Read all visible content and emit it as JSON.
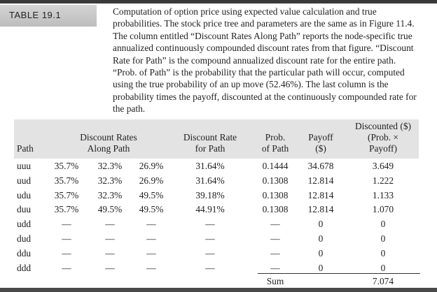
{
  "label": "TABLE 19.1",
  "caption": "Computation of option price using expected value calculation and true probabilities. The stock price tree and parameters are the same as in Figure 11.4. The column entitled “Discount Rates Along Path” reports the node-specific true annualized continuously compounded discount rates from that figure. “Discount Rate for Path” is the compound annualized discount rate for the entire path. “Prob. of Path” is the probability that the particular path will occur, computed using the true probability of an up move (52.46%). The last column is the probability times the payoff, discounted at the continuously compounded rate for the path.",
  "headers": {
    "path": "Path",
    "rates_along_1": "Discount Rates",
    "rates_along_2": "Along Path",
    "rate_for_1": "Discount Rate",
    "rate_for_2": "for Path",
    "prob_1": "Prob.",
    "prob_2": "of Path",
    "payoff_1": "Payoff",
    "payoff_2": "($)",
    "disc_1": "Discounted ($)",
    "disc_2": "(Prob. ×",
    "disc_3": "Payoff)"
  },
  "rows": [
    {
      "path": "uuu",
      "r1": "35.7%",
      "r2": "32.3%",
      "r3": "26.9%",
      "rate": "31.64%",
      "prob": "0.1444",
      "payoff": "34.678",
      "disc": "3.649"
    },
    {
      "path": "uud",
      "r1": "35.7%",
      "r2": "32.3%",
      "r3": "26.9%",
      "rate": "31.64%",
      "prob": "0.1308",
      "payoff": "12.814",
      "disc": "1.222"
    },
    {
      "path": "udu",
      "r1": "35.7%",
      "r2": "32.3%",
      "r3": "49.5%",
      "rate": "39.18%",
      "prob": "0.1308",
      "payoff": "12.814",
      "disc": "1.133"
    },
    {
      "path": "duu",
      "r1": "35.7%",
      "r2": "49.5%",
      "r3": "49.5%",
      "rate": "44.91%",
      "prob": "0.1308",
      "payoff": "12.814",
      "disc": "1.070"
    },
    {
      "path": "udd",
      "r1": "—",
      "r2": "—",
      "r3": "—",
      "rate": "—",
      "prob": "—",
      "payoff": "0",
      "disc": "0"
    },
    {
      "path": "dud",
      "r1": "—",
      "r2": "—",
      "r3": "—",
      "rate": "—",
      "prob": "—",
      "payoff": "0",
      "disc": "0"
    },
    {
      "path": "ddu",
      "r1": "—",
      "r2": "—",
      "r3": "—",
      "rate": "—",
      "prob": "—",
      "payoff": "0",
      "disc": "0"
    },
    {
      "path": "ddd",
      "r1": "—",
      "r2": "—",
      "r3": "—",
      "rate": "—",
      "prob": "—",
      "payoff": "0",
      "disc": "0"
    }
  ],
  "sum": {
    "label": "Sum",
    "value": "7.074"
  }
}
